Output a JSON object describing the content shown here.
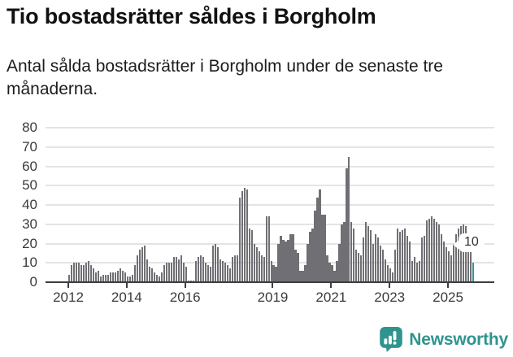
{
  "title": "Tio bostadsrätter såldes i Borgholm",
  "subtitle": "Antal sålda bostadsrätter i Borgholm under de senaste tre månaderna.",
  "footer": {
    "brand": "Newsworthy",
    "brand_color": "#2f948e"
  },
  "chart_data": {
    "type": "bar",
    "title": "Antal sålda bostadsrätter i Borgholm, rullande tre månader",
    "x_start": "2012-01",
    "x_end": "2025-11",
    "frequency": "monthly",
    "ylim": [
      0,
      80
    ],
    "yticks": [
      0,
      10,
      20,
      30,
      40,
      50,
      60,
      70,
      80
    ],
    "grid": "horizontal",
    "bar_color": "#6f6f74",
    "values": [
      4,
      9,
      10,
      10,
      10,
      9,
      9,
      10,
      11,
      9,
      7,
      5,
      6,
      3,
      4,
      4,
      4,
      5,
      5,
      5,
      6,
      7,
      6,
      5,
      3,
      3,
      4,
      9,
      14,
      17,
      18,
      19,
      12,
      8,
      7,
      5,
      4,
      3,
      5,
      9,
      10,
      10,
      10,
      13,
      13,
      12,
      14,
      10,
      8,
      1,
      1,
      1,
      11,
      13,
      14,
      13,
      10,
      9,
      8,
      19,
      20,
      18,
      12,
      11,
      10,
      9,
      7,
      13,
      14,
      14,
      44,
      47,
      49,
      48,
      28,
      27,
      20,
      18,
      16,
      14,
      13,
      34,
      34,
      11,
      9,
      8,
      20,
      24,
      22,
      21,
      22,
      25,
      25,
      17,
      15,
      6,
      6,
      9,
      20,
      26,
      28,
      37,
      44,
      48,
      35,
      35,
      14,
      10,
      9,
      6,
      11,
      20,
      30,
      31,
      59,
      65,
      31,
      28,
      17,
      15,
      14,
      23,
      31,
      29,
      27,
      20,
      25,
      23,
      19,
      17,
      12,
      9,
      7,
      5,
      17,
      28,
      26,
      27,
      28,
      24,
      21,
      11,
      13,
      10,
      11,
      23,
      24,
      32,
      33,
      34,
      33,
      31,
      30,
      25,
      21,
      18,
      16,
      14,
      20,
      25,
      28,
      29,
      30,
      29,
      25,
      16,
      10
    ],
    "xticks": [
      {
        "label": "2012",
        "index": 0
      },
      {
        "label": "2014",
        "index": 24
      },
      {
        "label": "2016",
        "index": 48
      },
      {
        "label": "2019",
        "index": 84
      },
      {
        "label": "2021",
        "index": 108
      },
      {
        "label": "2023",
        "index": 132
      },
      {
        "label": "2025",
        "index": 156
      }
    ],
    "highlight": {
      "index": 166,
      "label": "10",
      "color": "#39948f"
    }
  }
}
